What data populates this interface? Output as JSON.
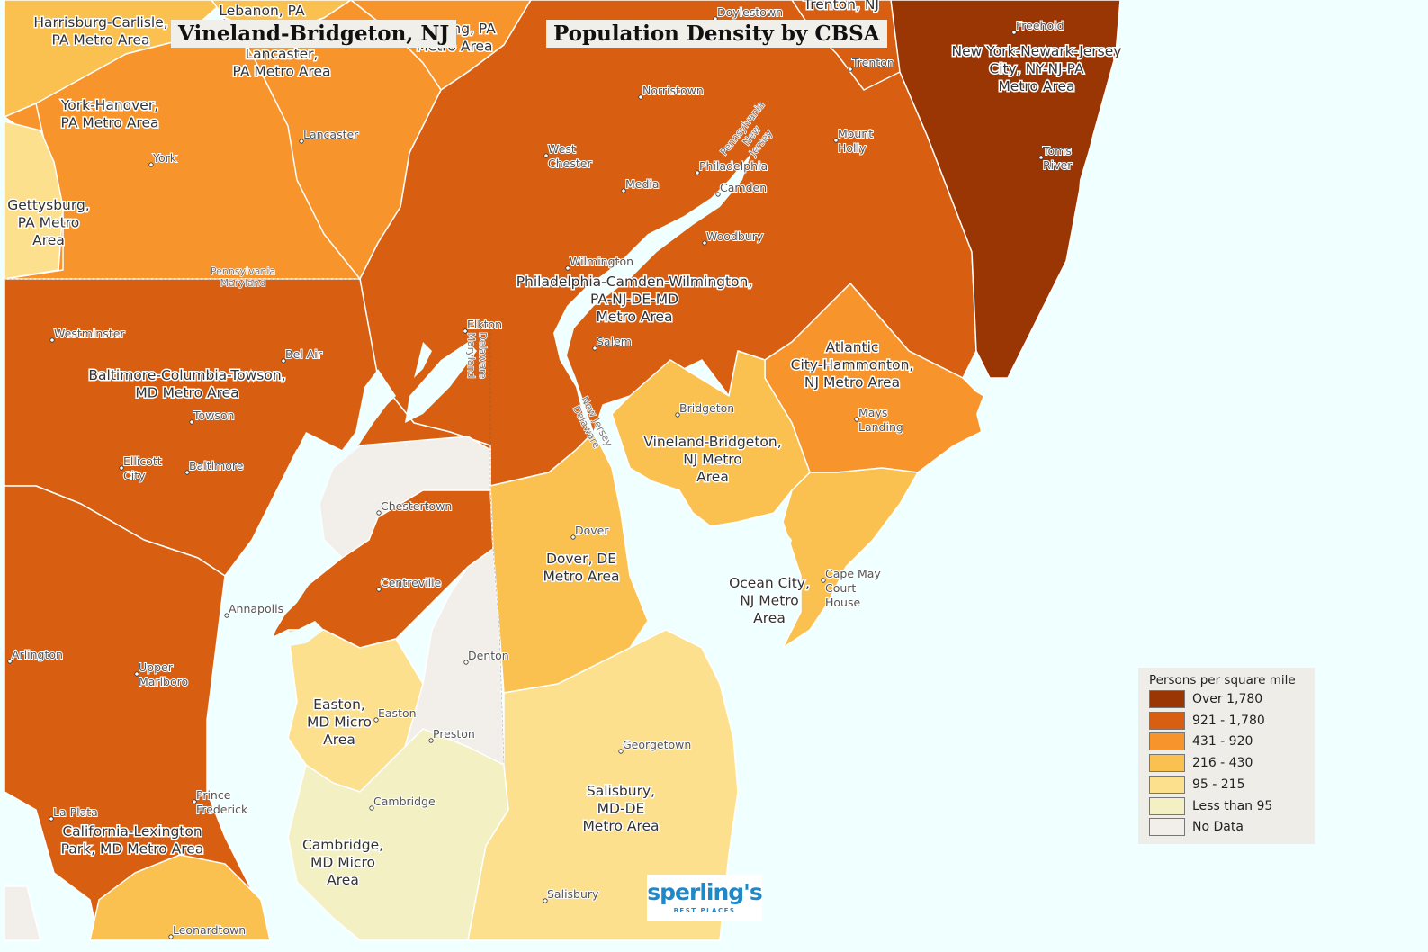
{
  "titles": {
    "region": "Vineland-Bridgeton, NJ",
    "map": "Population Density by CBSA"
  },
  "legend": {
    "title": "Persons per square mile",
    "items": [
      {
        "label": "Over 1,780",
        "color": "#9a3504"
      },
      {
        "label": "921 - 1,780",
        "color": "#d85f11"
      },
      {
        "label": "431 - 920",
        "color": "#f7952c"
      },
      {
        "label": "216 - 430",
        "color": "#fbc150"
      },
      {
        "label": "95 - 215",
        "color": "#fde08e"
      },
      {
        "label": "Less than 95",
        "color": "#f3f0c3"
      },
      {
        "label": "No Data",
        "color": "#f2efea"
      }
    ]
  },
  "colors": {
    "water": "#f0ffff",
    "boundary": "#ffffff"
  },
  "metro_labels": [
    {
      "id": "harrisburg",
      "lines": [
        "Harrisburg-Carlisle,",
        "PA Metro Area"
      ]
    },
    {
      "id": "lebanon",
      "lines": [
        "Lebanon, PA"
      ]
    },
    {
      "id": "reading",
      "lines": [
        "Reading, PA",
        "Metro Area"
      ]
    },
    {
      "id": "lancaster",
      "lines": [
        "Lancaster,",
        "PA Metro Area"
      ]
    },
    {
      "id": "york",
      "lines": [
        "York-Hanover,",
        "PA Metro Area"
      ]
    },
    {
      "id": "gettysburg",
      "lines": [
        "Gettysburg,",
        "PA Metro",
        "Area"
      ]
    },
    {
      "id": "trenton",
      "lines": [
        "Trenton, NJ"
      ]
    },
    {
      "id": "newyork",
      "lines": [
        "New York-Newark-Jersey",
        "City, NY-NJ-PA",
        "Metro Area"
      ]
    },
    {
      "id": "philadelphia",
      "lines": [
        "Philadelphia-Camden-Wilmington,",
        "PA-NJ-DE-MD",
        "Metro Area"
      ]
    },
    {
      "id": "atlantic",
      "lines": [
        "Atlantic",
        "City-Hammonton,",
        "NJ Metro Area"
      ]
    },
    {
      "id": "baltimore",
      "lines": [
        "Baltimore-Columbia-Towson,",
        "MD Metro Area"
      ]
    },
    {
      "id": "vineland",
      "lines": [
        "Vineland-Bridgeton,",
        "NJ Metro",
        "Area"
      ]
    },
    {
      "id": "dover",
      "lines": [
        "Dover, DE",
        "Metro Area"
      ]
    },
    {
      "id": "oceancity",
      "lines": [
        "Ocean City,",
        "NJ Metro",
        "Area"
      ]
    },
    {
      "id": "easton",
      "lines": [
        "Easton,",
        "MD Micro",
        "Area"
      ]
    },
    {
      "id": "salisbury",
      "lines": [
        "Salisbury,",
        "MD-DE",
        "Metro Area"
      ]
    },
    {
      "id": "california",
      "lines": [
        "California-Lexington",
        "Park, MD Metro Area"
      ]
    },
    {
      "id": "cambridge",
      "lines": [
        "Cambridge,",
        "MD Micro",
        "Area"
      ]
    }
  ],
  "cities": [
    {
      "id": "doylestown",
      "lines": [
        "Doylestown"
      ]
    },
    {
      "id": "freehold",
      "lines": [
        "Freehold"
      ]
    },
    {
      "id": "trenton-city",
      "lines": [
        "Trenton"
      ]
    },
    {
      "id": "norristown",
      "lines": [
        "Norristown"
      ]
    },
    {
      "id": "lancaster-city",
      "lines": [
        "Lancaster"
      ]
    },
    {
      "id": "york-city",
      "lines": [
        "York"
      ]
    },
    {
      "id": "west-chester",
      "lines": [
        "West",
        "Chester"
      ]
    },
    {
      "id": "philadelphia-city",
      "lines": [
        "Philadelphia"
      ]
    },
    {
      "id": "media",
      "lines": [
        "Media"
      ]
    },
    {
      "id": "camden",
      "lines": [
        "Camden"
      ]
    },
    {
      "id": "mount-holly",
      "lines": [
        "Mount",
        "Holly"
      ]
    },
    {
      "id": "toms-river",
      "lines": [
        "Toms",
        "River"
      ]
    },
    {
      "id": "woodbury",
      "lines": [
        "Woodbury"
      ]
    },
    {
      "id": "wilmington",
      "lines": [
        "Wilmington"
      ]
    },
    {
      "id": "westminster",
      "lines": [
        "Westminster"
      ]
    },
    {
      "id": "elkton",
      "lines": [
        "Elkton"
      ]
    },
    {
      "id": "bel-air",
      "lines": [
        "Bel Air"
      ]
    },
    {
      "id": "salem",
      "lines": [
        "Salem"
      ]
    },
    {
      "id": "towson",
      "lines": [
        "Towson"
      ]
    },
    {
      "id": "bridgeton",
      "lines": [
        "Bridgeton"
      ]
    },
    {
      "id": "mays-landing",
      "lines": [
        "Mays",
        "Landing"
      ]
    },
    {
      "id": "ellicott-city",
      "lines": [
        "Ellicott",
        "City"
      ]
    },
    {
      "id": "baltimore-city",
      "lines": [
        "Baltimore"
      ]
    },
    {
      "id": "chestertown",
      "lines": [
        "Chestertown"
      ]
    },
    {
      "id": "dover-city",
      "lines": [
        "Dover"
      ]
    },
    {
      "id": "cape-may",
      "lines": [
        "Cape May",
        "Court",
        "House"
      ]
    },
    {
      "id": "centreville",
      "lines": [
        "Centreville"
      ]
    },
    {
      "id": "annapolis",
      "lines": [
        "Annapolis"
      ]
    },
    {
      "id": "denton",
      "lines": [
        "Denton"
      ]
    },
    {
      "id": "arlington",
      "lines": [
        "Arlington"
      ]
    },
    {
      "id": "upper-marlboro",
      "lines": [
        "Upper",
        "Marlboro"
      ]
    },
    {
      "id": "easton-city",
      "lines": [
        "Easton"
      ]
    },
    {
      "id": "preston",
      "lines": [
        "Preston"
      ]
    },
    {
      "id": "georgetown",
      "lines": [
        "Georgetown"
      ]
    },
    {
      "id": "cambridge-city",
      "lines": [
        "Cambridge"
      ]
    },
    {
      "id": "prince-frederick",
      "lines": [
        "Prince",
        "Frederick"
      ]
    },
    {
      "id": "la-plata",
      "lines": [
        "La Plata"
      ]
    },
    {
      "id": "salisbury-city",
      "lines": [
        "Salisbury"
      ]
    },
    {
      "id": "leonardtown",
      "lines": [
        "Leonardtown"
      ]
    }
  ],
  "state_lines": [
    {
      "id": "pa-md",
      "lines": [
        "Pennsylvania",
        "Maryland"
      ]
    },
    {
      "id": "de-md",
      "lines": [
        "Delaware",
        "Maryland"
      ]
    },
    {
      "id": "pa-nj",
      "lines": [
        "Pennsylvania",
        "New",
        "Jersey"
      ]
    },
    {
      "id": "nj-de",
      "lines": [
        "New Jersey",
        "Delaware"
      ]
    }
  ],
  "logo": {
    "main": "sperling's",
    "sub": "BEST PLACES"
  }
}
